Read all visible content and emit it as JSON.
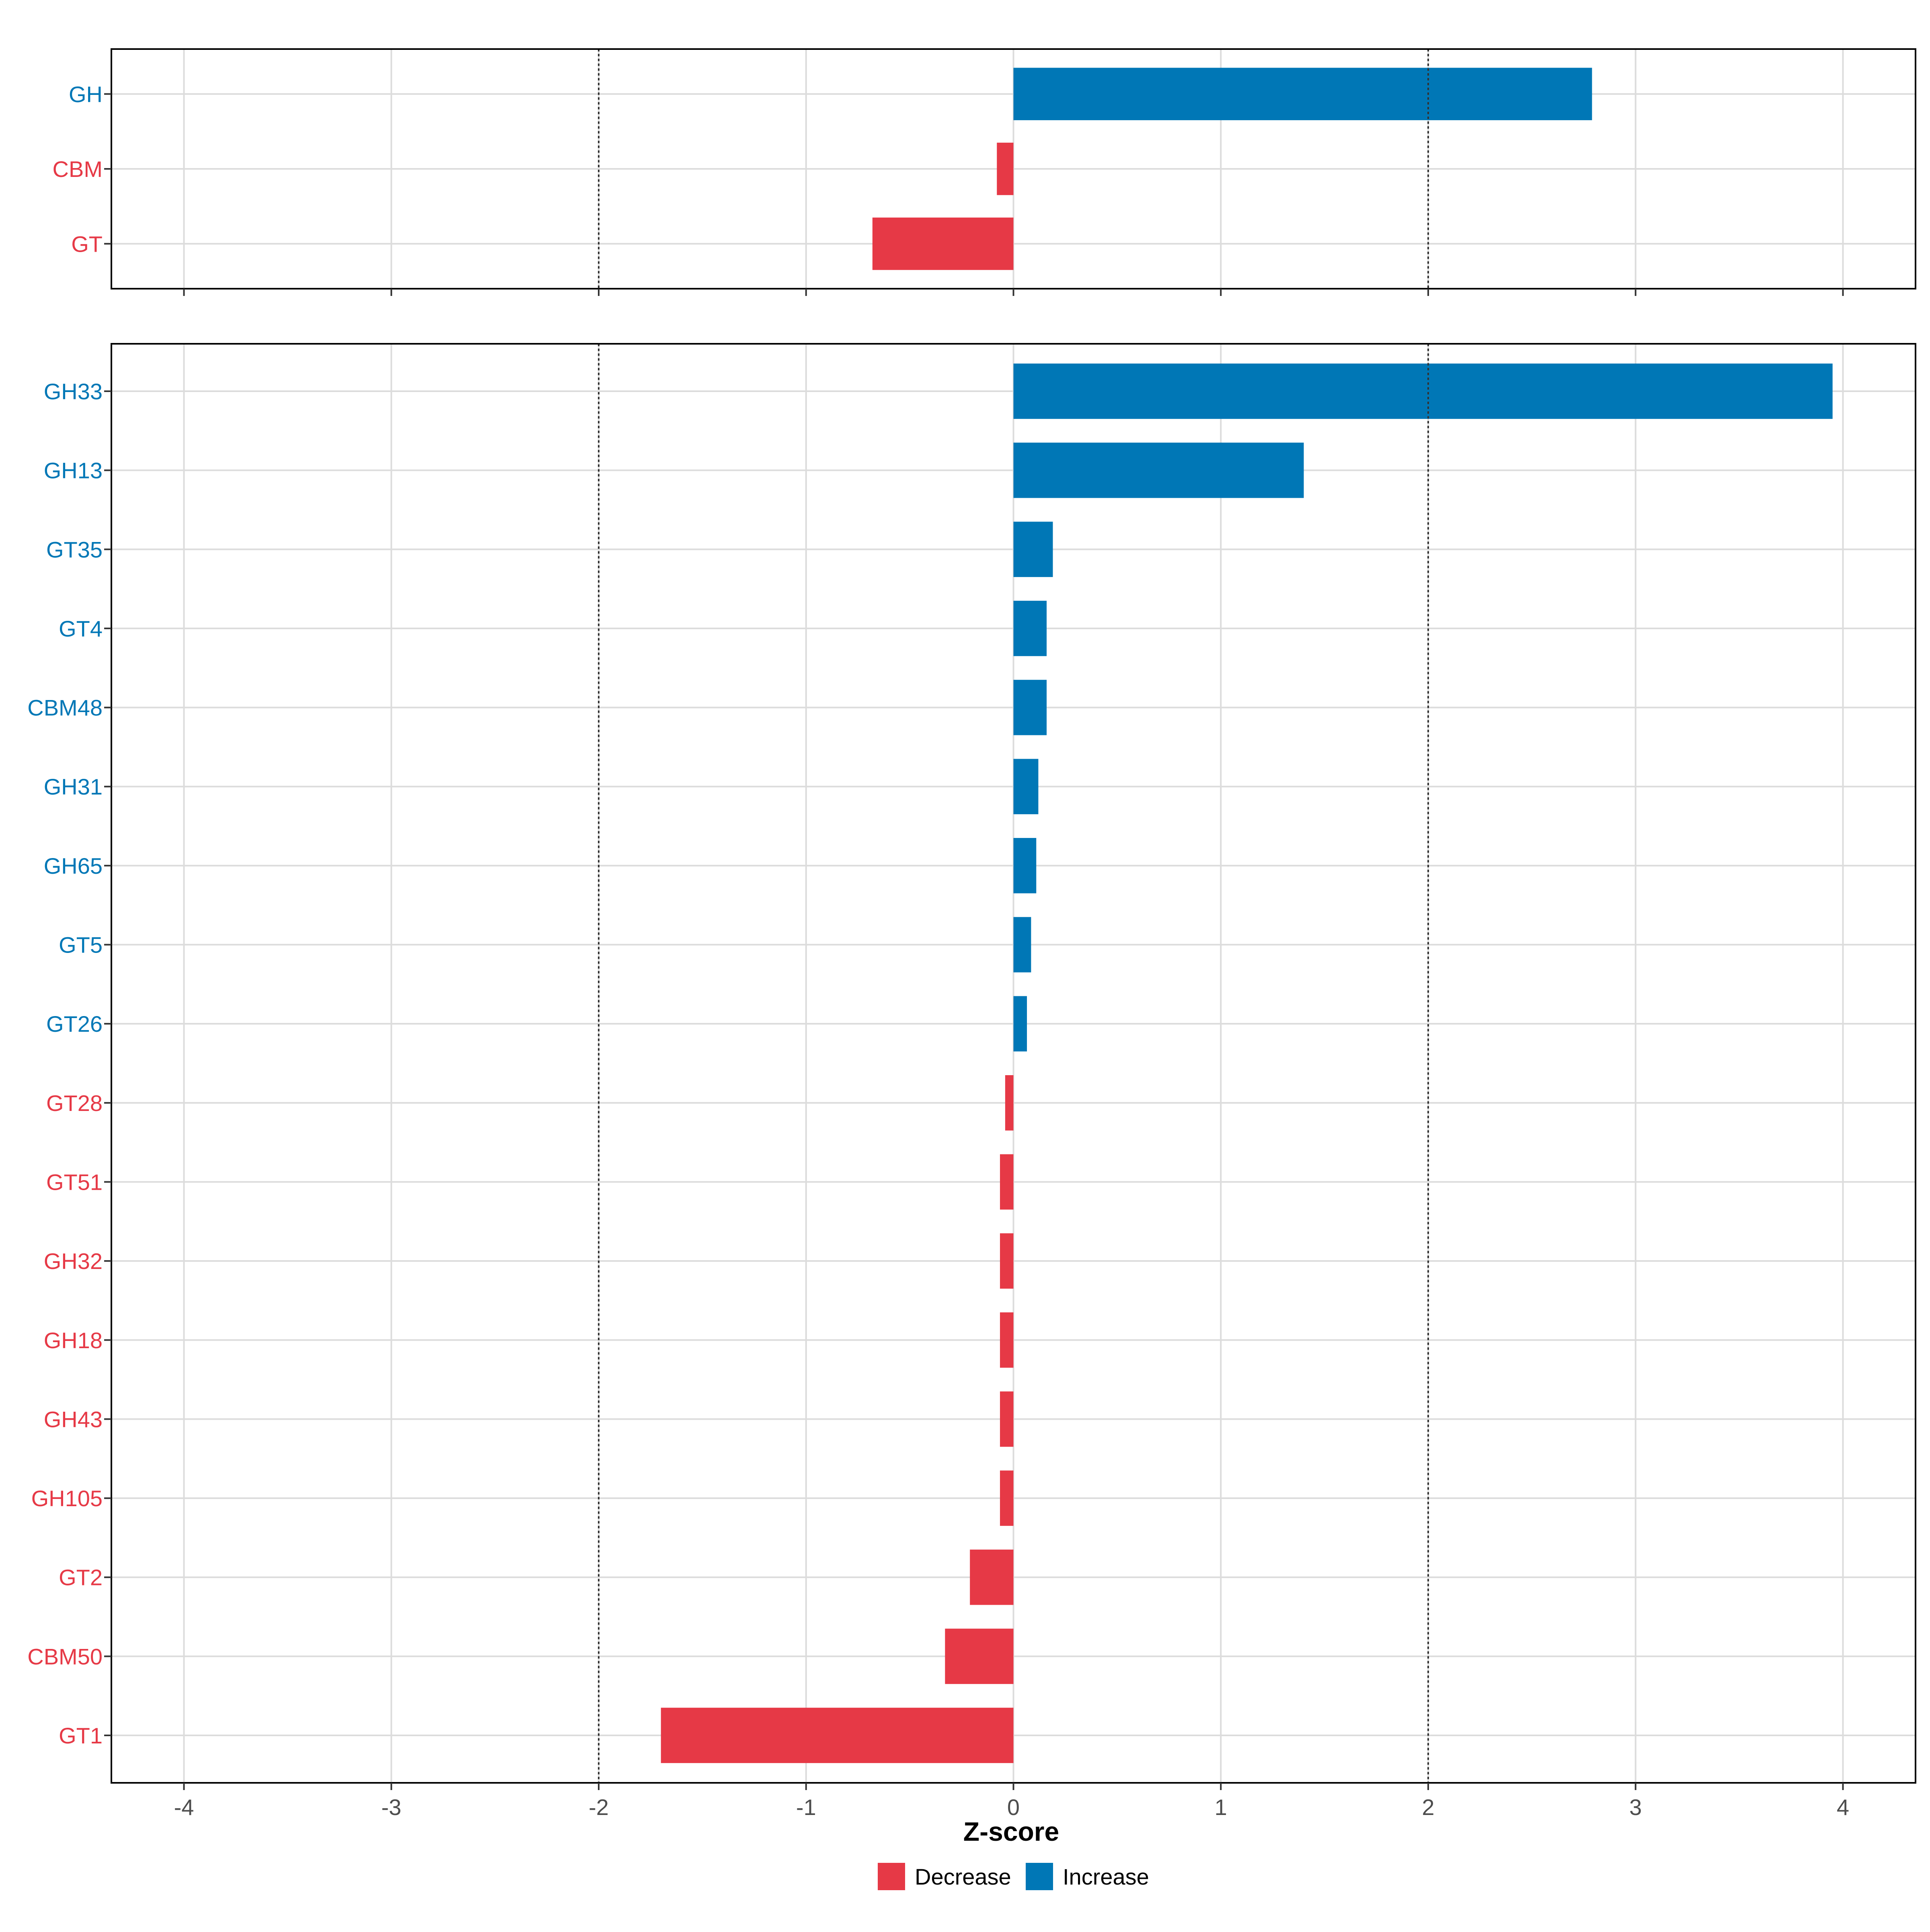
{
  "chart_data": {
    "type": "bar",
    "orientation": "horizontal",
    "xlabel": "Z-score",
    "xlim": [
      -4.35,
      4.35
    ],
    "xticks": [
      -4,
      -3,
      -2,
      -1,
      0,
      1,
      2,
      3,
      4
    ],
    "xtick_labels": [
      "-4",
      "-3",
      "-2",
      "-1",
      "0",
      "1",
      "2",
      "3",
      "4"
    ],
    "reference_lines": [
      -2,
      2
    ],
    "grid": true,
    "legend": {
      "placement": "bottom",
      "entries": [
        {
          "label": "Decrease",
          "color": "#E63946"
        },
        {
          "label": "Increase",
          "color": "#0077B6"
        }
      ]
    },
    "colors": {
      "decrease": "#E63946",
      "increase": "#0077B6"
    },
    "panels": [
      {
        "name": "class-level",
        "categories": [
          "GH",
          "CBM",
          "GT"
        ],
        "values": [
          2.79,
          -0.08,
          -0.68
        ]
      },
      {
        "name": "family-level",
        "categories": [
          "GH33",
          "GH13",
          "GT35",
          "GT4",
          "CBM48",
          "GH31",
          "GH65",
          "GT5",
          "GT26",
          "GT28",
          "GT51",
          "GH32",
          "GH18",
          "GH43",
          "GH105",
          "GT2",
          "CBM50",
          "GT1"
        ],
        "values": [
          3.95,
          1.4,
          0.19,
          0.16,
          0.16,
          0.12,
          0.11,
          0.085,
          0.065,
          -0.04,
          -0.065,
          -0.065,
          -0.065,
          -0.065,
          -0.065,
          -0.21,
          -0.33,
          -1.7
        ]
      }
    ]
  }
}
